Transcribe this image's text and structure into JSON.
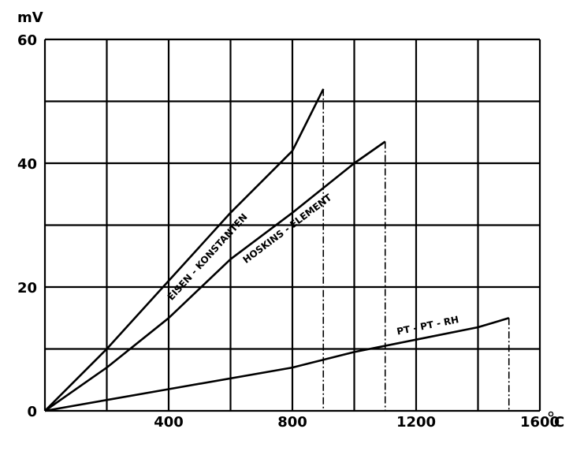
{
  "chart_data": {
    "type": "line",
    "title": "",
    "ylabel": "mV",
    "xlabel": "°C",
    "xlim": [
      0,
      1600
    ],
    "ylim": [
      0,
      60
    ],
    "x_ticks": [
      0,
      200,
      400,
      600,
      800,
      1000,
      1200,
      1400,
      1600
    ],
    "y_ticks": [
      0,
      10,
      20,
      30,
      40,
      50,
      60
    ],
    "x_tick_labels": [
      {
        "value": 400,
        "label": "400"
      },
      {
        "value": 800,
        "label": "800"
      },
      {
        "value": 1200,
        "label": "1200"
      },
      {
        "value": 1600,
        "label": "1600"
      }
    ],
    "y_tick_labels": [
      {
        "value": 0,
        "label": "0"
      },
      {
        "value": 20,
        "label": "20"
      },
      {
        "value": 40,
        "label": "40"
      },
      {
        "value": 60,
        "label": "60"
      }
    ],
    "x_unit": "°C",
    "grid": true,
    "series": [
      {
        "name": "EISEN - KONSTANTEN",
        "points": [
          [
            0,
            0
          ],
          [
            200,
            10
          ],
          [
            400,
            21
          ],
          [
            600,
            32
          ],
          [
            800,
            42
          ],
          [
            900,
            52
          ]
        ],
        "end_marker": 900
      },
      {
        "name": "HOSKINS - ELEMENT",
        "points": [
          [
            0,
            0
          ],
          [
            200,
            7
          ],
          [
            400,
            15
          ],
          [
            600,
            24.5
          ],
          [
            800,
            32
          ],
          [
            1000,
            40
          ],
          [
            1100,
            43.5
          ]
        ],
        "end_marker": 1100
      },
      {
        "name": "PT - PT - RH",
        "points": [
          [
            0,
            0
          ],
          [
            400,
            3.5
          ],
          [
            800,
            7
          ],
          [
            1000,
            9.5
          ],
          [
            1200,
            11.5
          ],
          [
            1400,
            13.5
          ],
          [
            1500,
            15
          ]
        ],
        "end_marker": 1500
      }
    ]
  }
}
